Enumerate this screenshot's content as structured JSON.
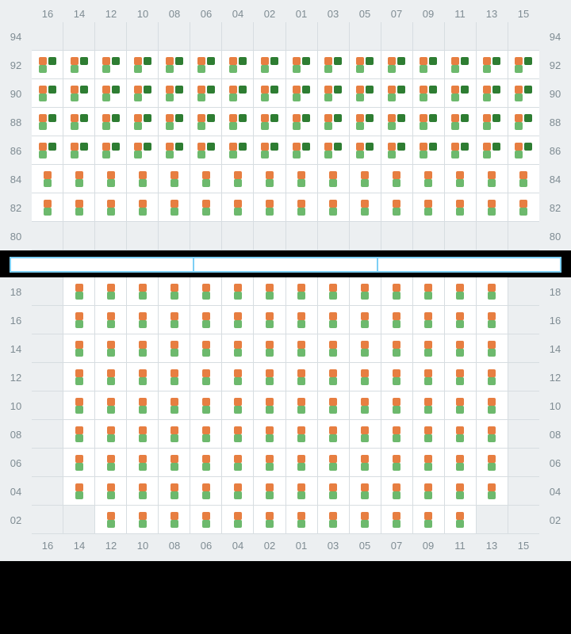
{
  "columns": [
    "16",
    "14",
    "12",
    "10",
    "08",
    "06",
    "04",
    "02",
    "01",
    "03",
    "05",
    "07",
    "09",
    "11",
    "13",
    "15"
  ],
  "colors": {
    "orange": "#e77e41",
    "green": "#6db96d",
    "darkgreen": "#2e7d32",
    "stage_border": "#7dcff5",
    "stage_fill": "#ffffff",
    "panel_bg": "#eceff1",
    "cell_bg": "#ffffff",
    "grid_line": "#d7dde1",
    "label_color": "#7f8c93",
    "page_bg": "#000000"
  },
  "stage_segments": 3,
  "sections": [
    {
      "id": "upper",
      "show_top_header": true,
      "show_bottom_header": false,
      "rows": [
        {
          "label": "94",
          "cells": [
            "empty",
            "empty",
            "empty",
            "empty",
            "empty",
            "empty",
            "empty",
            "empty",
            "empty",
            "empty",
            "empty",
            "empty",
            "empty",
            "empty",
            "empty",
            "empty"
          ]
        },
        {
          "label": "92",
          "cells": [
            "full",
            "full",
            "full",
            "full",
            "full",
            "full",
            "full",
            "full",
            "full",
            "full",
            "full",
            "full",
            "full",
            "full",
            "full",
            "full"
          ]
        },
        {
          "label": "90",
          "cells": [
            "full",
            "full",
            "full",
            "full",
            "full",
            "full",
            "full",
            "full",
            "full",
            "full",
            "full",
            "full",
            "full",
            "full",
            "full",
            "full"
          ]
        },
        {
          "label": "88",
          "cells": [
            "full",
            "full",
            "full",
            "full",
            "full",
            "full",
            "full",
            "full",
            "full",
            "full",
            "full",
            "full",
            "full",
            "full",
            "full",
            "full"
          ]
        },
        {
          "label": "86",
          "cells": [
            "full",
            "full",
            "full",
            "full",
            "full",
            "full",
            "full",
            "full",
            "full",
            "full",
            "full",
            "full",
            "full",
            "full",
            "full",
            "full"
          ]
        },
        {
          "label": "84",
          "cells": [
            "half",
            "half",
            "half",
            "half",
            "half",
            "half",
            "half",
            "half",
            "half",
            "half",
            "half",
            "half",
            "half",
            "half",
            "half",
            "half"
          ]
        },
        {
          "label": "82",
          "cells": [
            "half",
            "half",
            "half",
            "half",
            "half",
            "half",
            "half",
            "half",
            "half",
            "half",
            "half",
            "half",
            "half",
            "half",
            "half",
            "half"
          ]
        },
        {
          "label": "80",
          "cells": [
            "empty",
            "empty",
            "empty",
            "empty",
            "empty",
            "empty",
            "empty",
            "empty",
            "empty",
            "empty",
            "empty",
            "empty",
            "empty",
            "empty",
            "empty",
            "empty"
          ]
        }
      ]
    },
    {
      "id": "lower",
      "show_top_header": false,
      "show_bottom_header": true,
      "rows": [
        {
          "label": "18",
          "cells": [
            "empty",
            "half",
            "half",
            "half",
            "half",
            "half",
            "half",
            "half",
            "half",
            "half",
            "half",
            "half",
            "half",
            "half",
            "half",
            "empty"
          ]
        },
        {
          "label": "16",
          "cells": [
            "empty",
            "half",
            "half",
            "half",
            "half",
            "half",
            "half",
            "half",
            "half",
            "half",
            "half",
            "half",
            "half",
            "half",
            "half",
            "empty"
          ]
        },
        {
          "label": "14",
          "cells": [
            "empty",
            "half",
            "half",
            "half",
            "half",
            "half",
            "half",
            "half",
            "half",
            "half",
            "half",
            "half",
            "half",
            "half",
            "half",
            "empty"
          ]
        },
        {
          "label": "12",
          "cells": [
            "empty",
            "half",
            "half",
            "half",
            "half",
            "half",
            "half",
            "half",
            "half",
            "half",
            "half",
            "half",
            "half",
            "half",
            "half",
            "empty"
          ]
        },
        {
          "label": "10",
          "cells": [
            "empty",
            "half",
            "half",
            "half",
            "half",
            "half",
            "half",
            "half",
            "half",
            "half",
            "half",
            "half",
            "half",
            "half",
            "half",
            "empty"
          ]
        },
        {
          "label": "08",
          "cells": [
            "empty",
            "half",
            "half",
            "half",
            "half",
            "half",
            "half",
            "half",
            "half",
            "half",
            "half",
            "half",
            "half",
            "half",
            "half",
            "empty"
          ]
        },
        {
          "label": "06",
          "cells": [
            "empty",
            "half",
            "half",
            "half",
            "half",
            "half",
            "half",
            "half",
            "half",
            "half",
            "half",
            "half",
            "half",
            "half",
            "half",
            "empty"
          ]
        },
        {
          "label": "04",
          "cells": [
            "empty",
            "half",
            "half",
            "half",
            "half",
            "half",
            "half",
            "half",
            "half",
            "half",
            "half",
            "half",
            "half",
            "half",
            "half",
            "empty"
          ]
        },
        {
          "label": "02",
          "cells": [
            "empty",
            "empty",
            "half",
            "half",
            "half",
            "half",
            "half",
            "half",
            "half",
            "half",
            "half",
            "half",
            "half",
            "half",
            "empty",
            "empty"
          ]
        }
      ]
    }
  ],
  "cell_types": {
    "empty": {
      "kind": "empty"
    },
    "full": {
      "kind": "seats",
      "rows": [
        [
          "orange",
          "darkgreen"
        ],
        [
          "green",
          "blank"
        ]
      ]
    },
    "half": {
      "kind": "seats",
      "rows": [
        [
          "orange"
        ],
        [
          "green"
        ]
      ]
    }
  }
}
